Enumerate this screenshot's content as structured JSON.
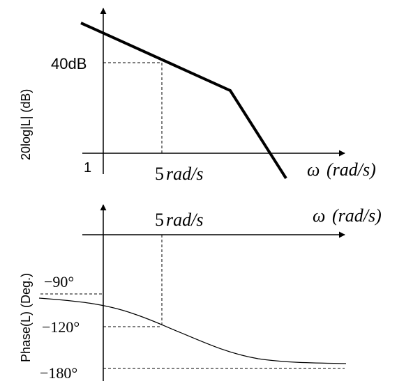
{
  "chart_data": [
    {
      "type": "line",
      "ylabel": "20log|L| (dB)",
      "xlabel": {
        "symbol": "ω",
        "unit": "(rad/s)"
      },
      "x_tick_labels": {
        "origin": "1",
        "marked": "5",
        "marked_unit": "rad/s"
      },
      "y_tick_labels": [
        "40dB"
      ],
      "marked_point": {
        "x": 5,
        "y": 40
      },
      "series": [
        {
          "style": "thick-straight-segments"
        }
      ]
    },
    {
      "type": "line",
      "ylabel": "Phase(L) (Deg.)",
      "xlabel": {
        "symbol": "ω",
        "unit": "(rad/s)"
      },
      "x_tick_labels": {
        "marked": "5",
        "marked_unit": "rad/s"
      },
      "y_tick_labels": [
        "−90°",
        "−120°",
        "−180°"
      ],
      "y_ticks": [
        -90,
        -120,
        -180
      ],
      "marked_point": {
        "x": 5,
        "y": -120
      },
      "series": [
        {
          "style": "thin-curve"
        }
      ]
    }
  ]
}
